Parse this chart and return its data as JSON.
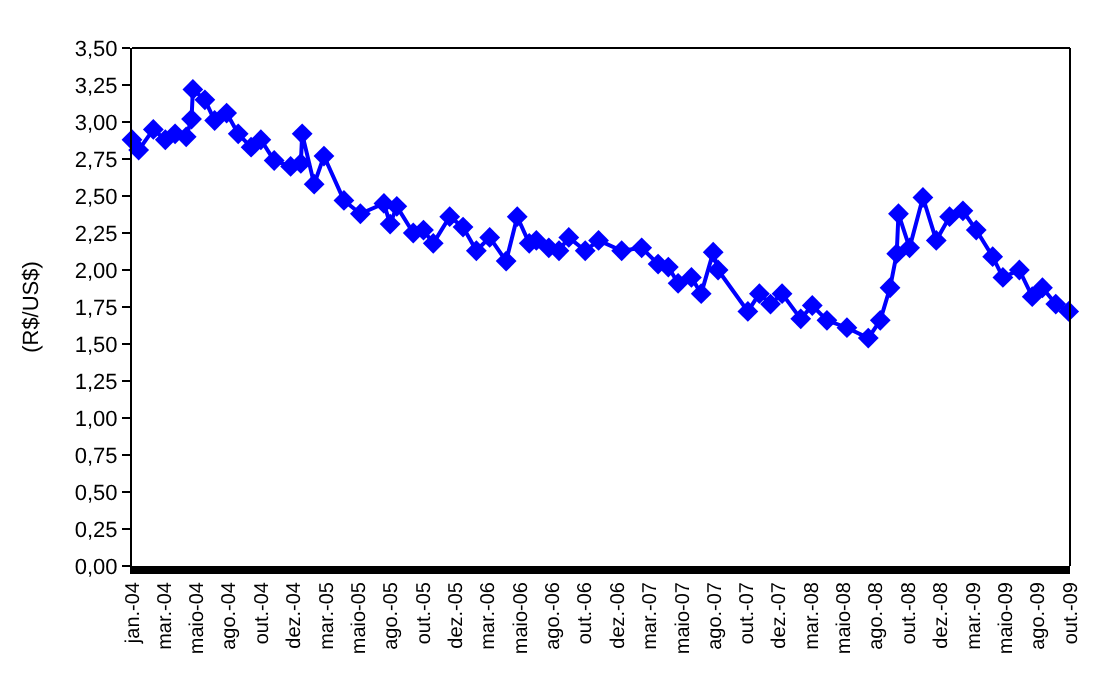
{
  "chart_data": {
    "type": "line",
    "ylabel": "(R$/US$)",
    "marker": "diamond",
    "line_style": "solid",
    "grid": false,
    "xlim": [
      "2004-01-02",
      "2009-10-13"
    ],
    "ylim": [
      0,
      3.5
    ],
    "yticks": [
      {
        "value": 0,
        "label": "0,00"
      },
      {
        "value": 0.25,
        "label": "0,25"
      },
      {
        "value": 0.5,
        "label": "0,50"
      },
      {
        "value": 0.75,
        "label": "0,75"
      },
      {
        "value": 1,
        "label": "1,00"
      },
      {
        "value": 1.25,
        "label": "1,25"
      },
      {
        "value": 1.5,
        "label": "1,50"
      },
      {
        "value": 1.75,
        "label": "1,75"
      },
      {
        "value": 2,
        "label": "2,00"
      },
      {
        "value": 2.25,
        "label": "2,25"
      },
      {
        "value": 2.5,
        "label": "2,50"
      },
      {
        "value": 2.75,
        "label": "2,75"
      },
      {
        "value": 3,
        "label": "3,00"
      },
      {
        "value": 3.25,
        "label": "3,25"
      },
      {
        "value": 3.5,
        "label": "3,50"
      }
    ],
    "xticks": [
      {
        "value": "2004-01-02",
        "label": "jan.-04"
      },
      {
        "value": "2004-03-15",
        "label": "mar.-04"
      },
      {
        "value": "2004-05-27",
        "label": "maio-04"
      },
      {
        "value": "2004-08-07",
        "label": "ago.-04"
      },
      {
        "value": "2004-10-19",
        "label": "out.-04"
      },
      {
        "value": "2004-12-31",
        "label": "dez.-04"
      },
      {
        "value": "2005-03-14",
        "label": "mar.-05"
      },
      {
        "value": "2005-05-26",
        "label": "maio-05"
      },
      {
        "value": "2005-08-06",
        "label": "ago.-05"
      },
      {
        "value": "2005-10-18",
        "label": "out.-05"
      },
      {
        "value": "2005-12-30",
        "label": "dez.-05"
      },
      {
        "value": "2006-03-13",
        "label": "mar.-06"
      },
      {
        "value": "2006-05-25",
        "label": "maio-06"
      },
      {
        "value": "2006-08-05",
        "label": "ago.-06"
      },
      {
        "value": "2006-10-17",
        "label": "out.-06"
      },
      {
        "value": "2006-12-29",
        "label": "dez.-06"
      },
      {
        "value": "2007-03-12",
        "label": "mar.-07"
      },
      {
        "value": "2007-05-24",
        "label": "maio-07"
      },
      {
        "value": "2007-08-04",
        "label": "ago.-07"
      },
      {
        "value": "2007-10-16",
        "label": "out.-07"
      },
      {
        "value": "2007-12-28",
        "label": "dez.-07"
      },
      {
        "value": "2008-03-10",
        "label": "mar.-08"
      },
      {
        "value": "2008-05-22",
        "label": "maio-08"
      },
      {
        "value": "2008-08-02",
        "label": "ago.-08"
      },
      {
        "value": "2008-10-14",
        "label": "out.-08"
      },
      {
        "value": "2008-12-26",
        "label": "dez.-08"
      },
      {
        "value": "2009-03-09",
        "label": "mar.-09"
      },
      {
        "value": "2009-05-21",
        "label": "maio-09"
      },
      {
        "value": "2009-08-01",
        "label": "ago.-09"
      },
      {
        "value": "2009-10-13",
        "label": "out.-09"
      }
    ],
    "series": [
      {
        "color": "#0000ff",
        "x": [
          "2004-01-02",
          "2004-01-17",
          "2004-02-19",
          "2004-03-17",
          "2004-04-08",
          "2004-05-03",
          "2004-05-15",
          "2004-05-18",
          "2004-06-14",
          "2004-07-06",
          "2004-08-02",
          "2004-08-28",
          "2004-09-26",
          "2004-10-18",
          "2004-11-17",
          "2004-12-24",
          "2005-01-16",
          "2005-01-19",
          "2005-02-15",
          "2005-03-09",
          "2005-04-23",
          "2005-05-30",
          "2005-07-22",
          "2005-08-05",
          "2005-08-20",
          "2005-09-26",
          "2005-10-19",
          "2005-11-10",
          "2005-12-17",
          "2006-01-16",
          "2006-02-15",
          "2006-03-17",
          "2006-04-23",
          "2006-05-18",
          "2006-06-14",
          "2006-06-30",
          "2006-07-28",
          "2006-08-20",
          "2006-09-11",
          "2006-10-18",
          "2006-11-17",
          "2007-01-08",
          "2007-02-22",
          "2007-03-31",
          "2007-04-23",
          "2007-05-15",
          "2007-06-14",
          "2007-07-06",
          "2007-08-02",
          "2007-08-13",
          "2007-10-19",
          "2007-11-14",
          "2007-12-09",
          "2008-01-04",
          "2008-02-15",
          "2008-03-12",
          "2008-04-14",
          "2008-05-29",
          "2008-07-16",
          "2008-08-12",
          "2008-09-03",
          "2008-09-18",
          "2008-09-22",
          "2008-10-17",
          "2008-11-16",
          "2008-12-16",
          "2009-01-15",
          "2009-02-14",
          "2009-03-16",
          "2009-04-22",
          "2009-05-15",
          "2009-06-21",
          "2009-07-20",
          "2009-08-12",
          "2009-09-11",
          "2009-10-10"
        ],
        "values": [
          2.88,
          2.81,
          2.95,
          2.88,
          2.92,
          2.9,
          3.02,
          3.22,
          3.15,
          3.01,
          3.06,
          2.92,
          2.83,
          2.88,
          2.74,
          2.7,
          2.72,
          2.92,
          2.58,
          2.77,
          2.47,
          2.38,
          2.45,
          2.31,
          2.43,
          2.25,
          2.27,
          2.18,
          2.36,
          2.29,
          2.13,
          2.22,
          2.06,
          2.36,
          2.18,
          2.2,
          2.15,
          2.13,
          2.22,
          2.13,
          2.2,
          2.13,
          2.15,
          2.04,
          2.02,
          1.91,
          1.95,
          1.84,
          2.12,
          2.0,
          1.72,
          1.84,
          1.77,
          1.84,
          1.67,
          1.76,
          1.66,
          1.61,
          1.54,
          1.66,
          1.88,
          2.11,
          2.38,
          2.15,
          2.49,
          2.2,
          2.36,
          2.4,
          2.27,
          2.09,
          1.95,
          2.0,
          1.82,
          1.88,
          1.77,
          1.72
        ]
      }
    ]
  }
}
